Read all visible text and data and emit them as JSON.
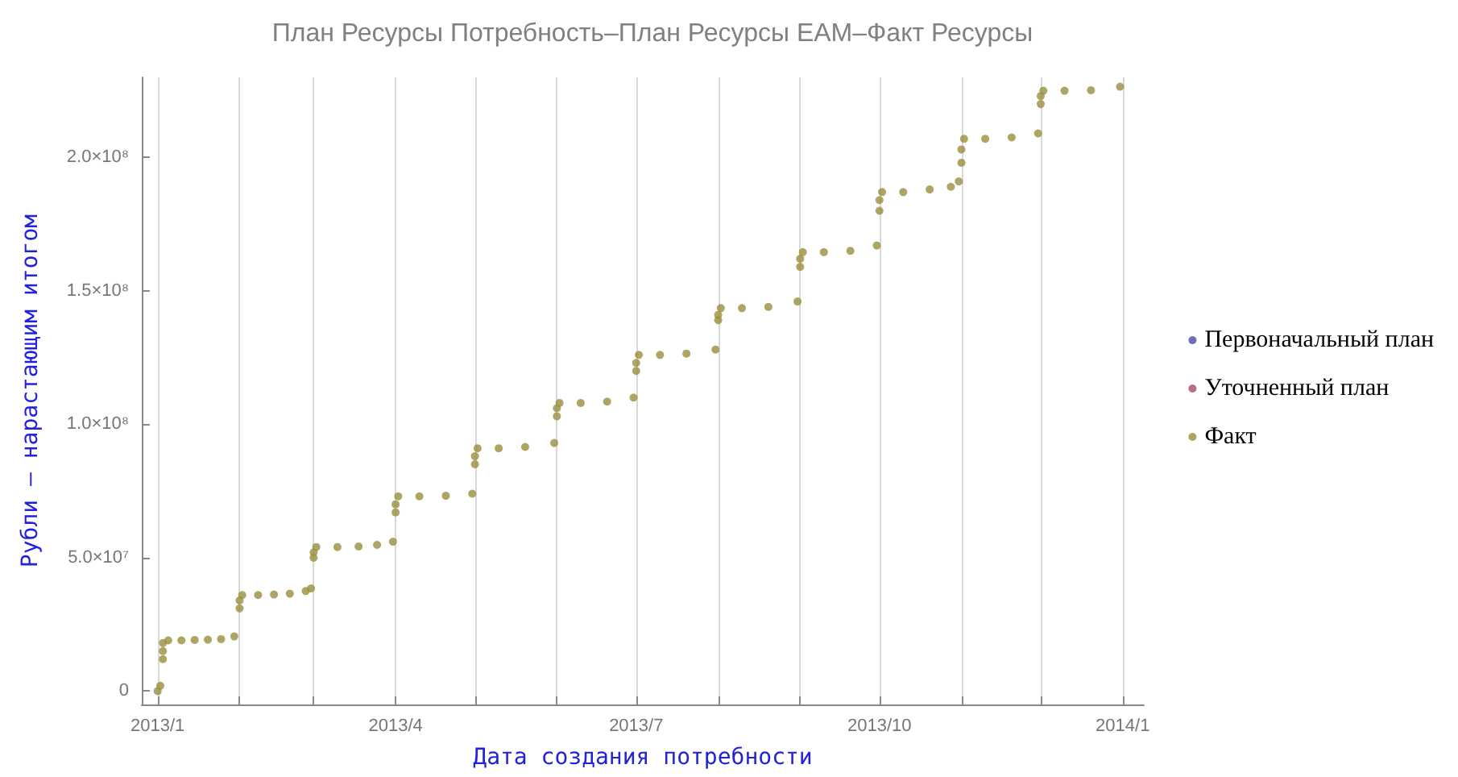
{
  "chart_data": {
    "type": "scatter",
    "title": "План Ресурсы Потребность–План Ресурсы EAM–Факт Ресурсы",
    "xlabel": "Дата создания потребности",
    "ylabel": "Рубли – нарастающим итогом",
    "x": [
      "2013-01-01",
      "2013-01-02",
      "2013-01-03",
      "2013-01-03",
      "2013-01-03",
      "2013-01-05",
      "2013-01-10",
      "2013-01-15",
      "2013-01-20",
      "2013-01-25",
      "2013-01-30",
      "2013-02-01",
      "2013-02-01",
      "2013-02-02",
      "2013-02-08",
      "2013-02-14",
      "2013-02-20",
      "2013-02-26",
      "2013-02-28",
      "2013-03-01",
      "2013-03-01",
      "2013-03-02",
      "2013-03-10",
      "2013-03-18",
      "2013-03-25",
      "2013-03-31",
      "2013-04-01",
      "2013-04-01",
      "2013-04-02",
      "2013-04-10",
      "2013-04-20",
      "2013-04-30",
      "2013-05-01",
      "2013-05-01",
      "2013-05-02",
      "2013-05-10",
      "2013-05-20",
      "2013-05-31",
      "2013-06-01",
      "2013-06-01",
      "2013-06-02",
      "2013-06-10",
      "2013-06-20",
      "2013-06-30",
      "2013-07-01",
      "2013-07-01",
      "2013-07-02",
      "2013-07-10",
      "2013-07-20",
      "2013-07-31",
      "2013-08-01",
      "2013-08-01",
      "2013-08-02",
      "2013-08-10",
      "2013-08-20",
      "2013-08-31",
      "2013-09-01",
      "2013-09-01",
      "2013-09-02",
      "2013-09-10",
      "2013-09-20",
      "2013-09-30",
      "2013-10-01",
      "2013-10-01",
      "2013-10-02",
      "2013-10-10",
      "2013-10-20",
      "2013-10-28",
      "2013-10-31",
      "2013-11-01",
      "2013-11-01",
      "2013-11-02",
      "2013-11-10",
      "2013-11-20",
      "2013-11-30",
      "2013-12-01",
      "2013-12-01",
      "2013-12-02",
      "2013-12-10",
      "2013-12-20",
      "2013-12-31"
    ],
    "series": [
      {
        "name": "Первоначальный план",
        "color": "#4a4aa8",
        "values": [
          null,
          null,
          null,
          null,
          null,
          null,
          null,
          null,
          null,
          null,
          null,
          null,
          null,
          null,
          null,
          null,
          null,
          null,
          null,
          null,
          null,
          null,
          null,
          null,
          null,
          null,
          null,
          null,
          null,
          null,
          null,
          null,
          null,
          null,
          null,
          null,
          null,
          null,
          null,
          null,
          null,
          null,
          null,
          null,
          null,
          null,
          null,
          null,
          null,
          null,
          null,
          null,
          null,
          null,
          null,
          null,
          null,
          null,
          null,
          null,
          null,
          null,
          null,
          null,
          null,
          null,
          null,
          null,
          null,
          null,
          null,
          null,
          null,
          null,
          null,
          null,
          null,
          null,
          null,
          null,
          null
        ]
      },
      {
        "name": "Уточненный план",
        "color": "#a84a72",
        "values": [
          null,
          null,
          null,
          null,
          null,
          null,
          null,
          null,
          null,
          null,
          null,
          null,
          null,
          null,
          null,
          null,
          null,
          null,
          null,
          null,
          null,
          null,
          null,
          null,
          null,
          null,
          null,
          null,
          null,
          null,
          null,
          null,
          null,
          null,
          null,
          null,
          null,
          null,
          null,
          null,
          null,
          null,
          null,
          null,
          null,
          null,
          null,
          null,
          null,
          null,
          null,
          null,
          null,
          null,
          null,
          null,
          null,
          null,
          null,
          null,
          null,
          null,
          null,
          null,
          null,
          null,
          null,
          null,
          null,
          null,
          null,
          null,
          null,
          null,
          null,
          null,
          null,
          null,
          null,
          null,
          null
        ]
      },
      {
        "name": "Факт",
        "color": "#9a8f3e",
        "values": [
          0,
          2000000,
          12000000,
          15000000,
          18000000,
          19000000,
          19000000,
          19200000,
          19300000,
          19500000,
          20500000,
          31000000,
          34000000,
          36000000,
          36000000,
          36200000,
          36500000,
          37500000,
          38500000,
          50000000,
          52000000,
          54000000,
          54000000,
          54200000,
          54800000,
          56000000,
          67000000,
          70000000,
          73000000,
          73000000,
          73200000,
          74000000,
          85000000,
          88000000,
          91000000,
          91000000,
          91500000,
          93000000,
          103000000,
          106000000,
          108000000,
          108000000,
          108500000,
          110000000,
          120000000,
          123000000,
          126000000,
          126000000,
          126500000,
          128000000,
          139000000,
          141000000,
          143500000,
          143500000,
          144000000,
          146000000,
          159000000,
          162000000,
          164500000,
          164500000,
          165000000,
          167000000,
          180000000,
          184000000,
          187000000,
          187000000,
          188000000,
          189000000,
          191000000,
          198000000,
          203000000,
          207000000,
          207000000,
          207500000,
          209000000,
          220000000,
          223000000,
          225000000,
          225000000,
          225200000,
          226500000
        ]
      }
    ],
    "xlim": [
      "2012-12-26",
      "2014-01-09"
    ],
    "xticks": [
      {
        "value": "2013-01-01",
        "label": "2013/1"
      },
      {
        "value": "2013-02-01",
        "label": null
      },
      {
        "value": "2013-03-01",
        "label": null
      },
      {
        "value": "2013-04-01",
        "label": "2013/4"
      },
      {
        "value": "2013-05-01",
        "label": null
      },
      {
        "value": "2013-06-01",
        "label": null
      },
      {
        "value": "2013-07-01",
        "label": "2013/7"
      },
      {
        "value": "2013-08-01",
        "label": null
      },
      {
        "value": "2013-09-01",
        "label": null
      },
      {
        "value": "2013-10-01",
        "label": "2013/10"
      },
      {
        "value": "2013-11-01",
        "label": null
      },
      {
        "value": "2013-12-01",
        "label": null
      },
      {
        "value": "2014-01-01",
        "label": "2014/1"
      }
    ],
    "ylim": [
      -5000000,
      230000000
    ],
    "yticks": [
      0,
      {
        "value": 50000000,
        "label": "5.0×10⁷"
      },
      {
        "value": 100000000,
        "label": "1.0×10⁸"
      },
      {
        "value": 150000000,
        "label": "1.5×10⁸"
      },
      {
        "value": 200000000,
        "label": "2.0×10⁸"
      }
    ],
    "grid": "x",
    "legend": "right",
    "marker": "circle"
  }
}
